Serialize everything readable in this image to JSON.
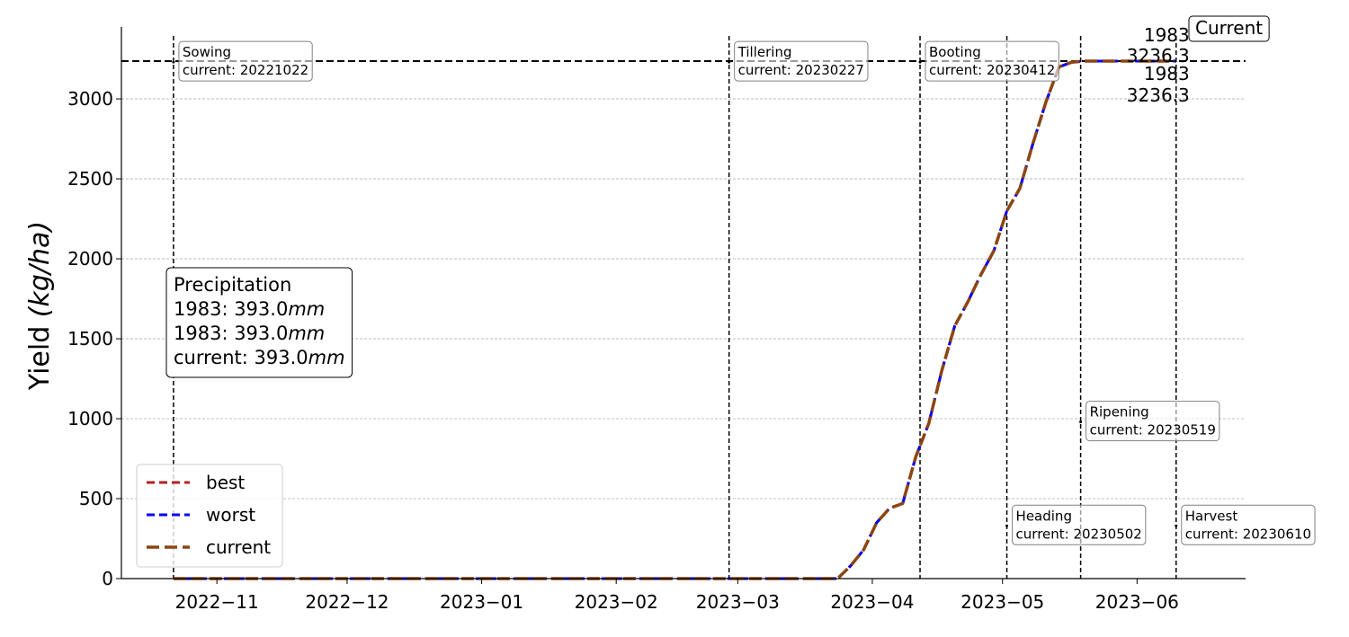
{
  "chart_data": {
    "type": "line",
    "ylabel": "Yield (kg/ha)",
    "ylim": [
      0,
      3450
    ],
    "yticks": [
      0,
      500,
      1000,
      1500,
      2000,
      2500,
      3000
    ],
    "xlim": [
      "2022-10-10",
      "2023-06-26"
    ],
    "xticks": [
      "2022-11-01",
      "2022-12-01",
      "2023-01-01",
      "2023-02-01",
      "2023-03-01",
      "2023-04-01",
      "2023-05-01",
      "2023-06-01"
    ],
    "xtick_labels": [
      "2022−11",
      "2022−12",
      "2023−01",
      "2023−02",
      "2023−03",
      "2023−04",
      "2023−05",
      "2023−06"
    ],
    "grid": "y",
    "legend": {
      "placement": "lower-left",
      "entries": [
        "best",
        "worst",
        "current"
      ]
    },
    "colors": {
      "best": "#b22222",
      "worst": "#0000ff",
      "current": "#8b4513"
    },
    "reference_line": {
      "y": 3236.3
    },
    "stages": [
      {
        "name": "Sowing",
        "date": "2022-10-22",
        "label": "current: 20221022",
        "label_y": 3230,
        "side": "right"
      },
      {
        "name": "Tillering",
        "date": "2023-02-27",
        "label": "current: 20230227",
        "label_y": 3230,
        "side": "right"
      },
      {
        "name": "Booting",
        "date": "2023-04-12",
        "label": "current: 20230412",
        "label_y": 3230,
        "side": "right"
      },
      {
        "name": "Heading",
        "date": "2023-05-02",
        "label": "current: 20230502",
        "label_y": 330,
        "side": "right"
      },
      {
        "name": "Ripening",
        "date": "2023-05-19",
        "label": "current: 20230519",
        "label_y": 980,
        "side": "right"
      },
      {
        "name": "Harvest",
        "date": "2023-06-10",
        "label": "current: 20230610",
        "label_y": 330,
        "side": "right"
      }
    ],
    "precipitation": {
      "title": "Precipitation",
      "lines": [
        {
          "prefix": "1983: 393.0",
          "unit": "mm"
        },
        {
          "prefix": "1983: 393.0",
          "unit": "mm"
        },
        {
          "prefix": "current: 393.0",
          "unit": "mm"
        }
      ]
    },
    "end_labels": {
      "upper": [
        "1983",
        "3236.3"
      ],
      "lower": [
        "1983",
        "3236.3"
      ],
      "current_box": "Current"
    },
    "x": [
      "2022-10-22",
      "2023-03-24",
      "2023-03-27",
      "2023-03-30",
      "2023-04-02",
      "2023-04-05",
      "2023-04-08",
      "2023-04-11",
      "2023-04-14",
      "2023-04-17",
      "2023-04-20",
      "2023-04-23",
      "2023-04-26",
      "2023-04-29",
      "2023-05-02",
      "2023-05-05",
      "2023-05-08",
      "2023-05-11",
      "2023-05-14",
      "2023-05-17",
      "2023-05-20",
      "2023-05-25",
      "2023-06-01",
      "2023-06-10"
    ],
    "series": [
      {
        "name": "best",
        "values": [
          0,
          0,
          80,
          180,
          350,
          440,
          470,
          760,
          970,
          1300,
          1580,
          1730,
          1900,
          2050,
          2300,
          2440,
          2720,
          2980,
          3200,
          3230,
          3236.3,
          3236.3,
          3236.3,
          3236.3
        ]
      },
      {
        "name": "worst",
        "values": [
          0,
          0,
          80,
          180,
          350,
          440,
          470,
          760,
          970,
          1300,
          1580,
          1730,
          1900,
          2050,
          2300,
          2440,
          2720,
          2980,
          3200,
          3230,
          3236.3,
          3236.3,
          3236.3,
          3236.3
        ]
      },
      {
        "name": "current",
        "values": [
          0,
          0,
          80,
          180,
          350,
          440,
          470,
          760,
          970,
          1300,
          1580,
          1730,
          1900,
          2050,
          2300,
          2440,
          2720,
          2980,
          3200,
          3230,
          3236.3,
          3236.3,
          3236.3,
          3236.3
        ]
      }
    ]
  }
}
